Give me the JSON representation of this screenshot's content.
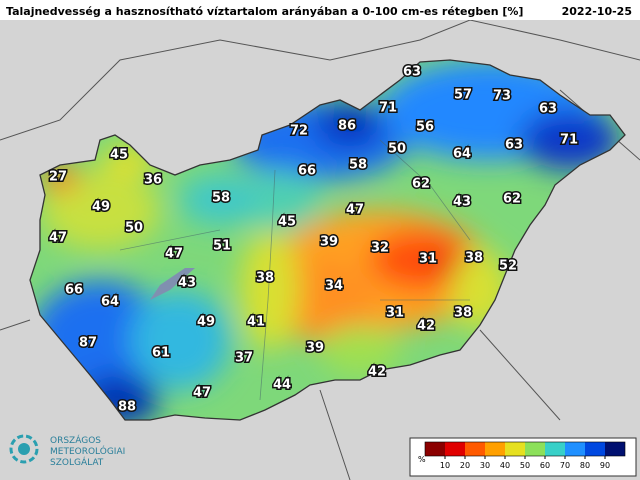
{
  "title": "Talajnedvesség a hasznosítható víztartalom arányában a 0-100 cm-es rétegben [%]",
  "date": "2022-10-25",
  "labels": [
    63,
    57,
    73,
    63,
    71,
    86,
    72,
    56,
    50,
    64,
    63,
    71,
    45,
    27,
    36,
    66,
    58,
    62,
    58,
    49,
    47,
    43,
    62,
    45,
    50,
    47,
    47,
    51,
    39,
    32,
    31,
    38,
    52,
    38,
    43,
    34,
    66,
    64,
    31,
    42,
    38,
    49,
    41,
    87,
    61,
    37,
    39,
    42,
    44,
    47,
    88
  ],
  "colorbar": {
    "unit": "%",
    "ticks": [
      10,
      20,
      30,
      40,
      50,
      60,
      70,
      80,
      90
    ],
    "colors": [
      "#8b0000",
      "#e00000",
      "#ff5a00",
      "#ffa000",
      "#e6e020",
      "#8ce05a",
      "#38d0c8",
      "#2090ff",
      "#0048e0",
      "#001070"
    ]
  },
  "logo": {
    "lines": [
      "ORSZÁGOS",
      "METEOROLÓGIAI",
      "SZOLGÁLAT"
    ]
  }
}
